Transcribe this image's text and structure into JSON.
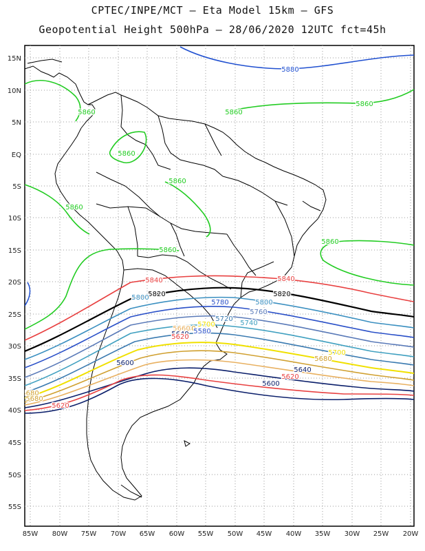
{
  "title_line1": "CPTEC/INPE/MCT –  Eta Model 15km – GFS",
  "title_line2": "Geopotential Height 500hPa – 28/06/2020 12UTC fct=45h",
  "lat_ticks": [
    "15N",
    "10N",
    "5N",
    "EQ",
    "5S",
    "10S",
    "15S",
    "20S",
    "25S",
    "30S",
    "35S",
    "40S",
    "45S",
    "50S",
    "55S"
  ],
  "lon_ticks": [
    "85W",
    "80W",
    "75W",
    "70W",
    "65W",
    "60W",
    "55W",
    "50W",
    "45W",
    "40W",
    "35W",
    "30W",
    "25W",
    "20W"
  ],
  "colors": {
    "c5880": "#2050d0",
    "c5860": "#22cc22",
    "c5840": "#e84040",
    "c5820": "#000000",
    "c5800": "#3a8fc0",
    "c5780": "#2a50c8",
    "c5760": "#5a7ab8",
    "c5740": "#40a0c0",
    "c5720": "#3a7ab0",
    "c5700": "#f0e000",
    "c5680": "#d0a030",
    "c5660": "#e8b060",
    "c5640": "#0a1e6a",
    "c5620": "#e84040",
    "c5600": "#0a1e6a",
    "coast": "#000000",
    "grid": "#888888"
  },
  "contour_labels": [
    {
      "text": "5880",
      "color": "c5880"
    },
    {
      "text": "5860",
      "color": "c5860"
    },
    {
      "text": "5860",
      "color": "c5860"
    },
    {
      "text": "5860",
      "color": "c5860"
    },
    {
      "text": "5860",
      "color": "c5860"
    },
    {
      "text": "5860",
      "color": "c5860"
    },
    {
      "text": "5860",
      "color": "c5860"
    },
    {
      "text": "5860",
      "color": "c5860"
    },
    {
      "text": "5860",
      "color": "c5860"
    },
    {
      "text": "5840",
      "color": "c5840"
    },
    {
      "text": "5840",
      "color": "c5840"
    },
    {
      "text": "5820",
      "color": "c5820"
    },
    {
      "text": "5820",
      "color": "c5820"
    },
    {
      "text": "5800",
      "color": "c5800"
    },
    {
      "text": "5800",
      "color": "c5800"
    },
    {
      "text": "5780",
      "color": "c5780"
    },
    {
      "text": "5760",
      "color": "c5760"
    },
    {
      "text": "5740",
      "color": "c5740"
    },
    {
      "text": "5720",
      "color": "c5720"
    },
    {
      "text": "5700",
      "color": "c5700"
    },
    {
      "text": "5700",
      "color": "c5700"
    },
    {
      "text": "5680",
      "color": "c5680"
    },
    {
      "text": "5680",
      "color": "c5680"
    },
    {
      "text": "5660",
      "color": "c5660"
    },
    {
      "text": "5640",
      "color": "c5640"
    },
    {
      "text": "5640",
      "color": "c5640"
    },
    {
      "text": "5620",
      "color": "c5620"
    },
    {
      "text": "5620",
      "color": "c5620"
    },
    {
      "text": "5600",
      "color": "c5600"
    },
    {
      "text": "5600",
      "color": "c5600"
    },
    {
      "text": "5680",
      "color": "c5680"
    },
    {
      "text": "5680",
      "color": "c5680"
    },
    {
      "text": "5620",
      "color": "c5620"
    },
    {
      "text": "5580",
      "color": "c5780"
    }
  ]
}
